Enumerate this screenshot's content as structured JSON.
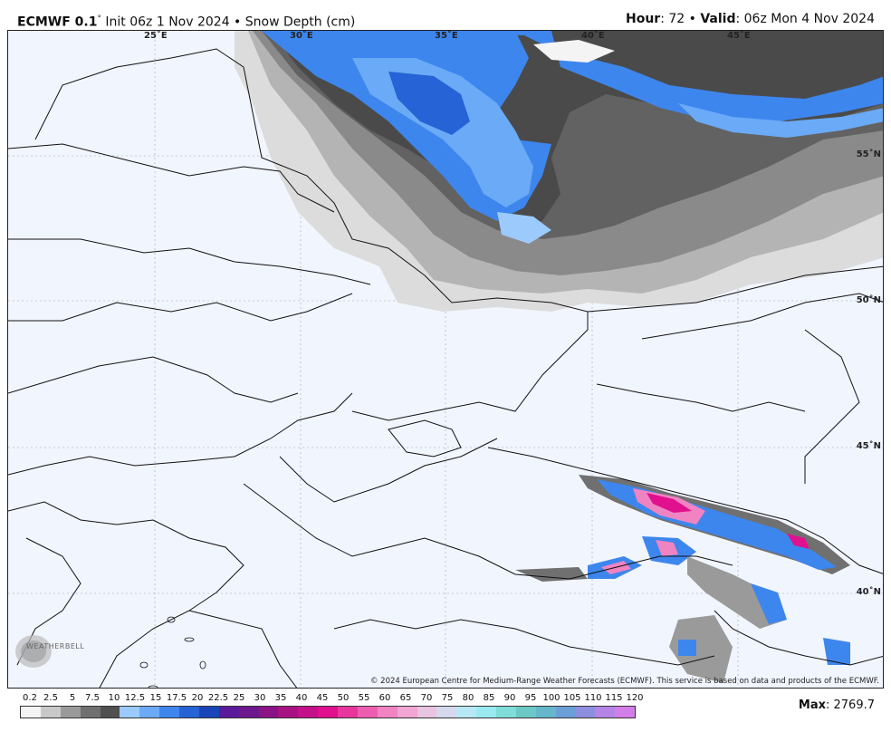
{
  "header": {
    "model": "ECMWF 0.1",
    "degree": "°",
    "init_text": " Init 06z 1 Nov 2024 • Snow Depth (cm)",
    "hour_label": "Hour",
    "hour_value": ": 72 • ",
    "valid_label": "Valid",
    "valid_value": ": 06z Mon 4 Nov 2024"
  },
  "map": {
    "longitude_labels": [
      "25˚E",
      "30˚E",
      "35˚E",
      "40˚E",
      "45˚E"
    ],
    "latitude_labels": [
      "55˚N",
      "50˚N",
      "45˚N",
      "40˚N"
    ],
    "copyright": "© 2024 European Centre for Medium-Range Weather Forecasts (ECMWF). This service is based on data and products of the ECMWF.",
    "logo_text": "WEATHERBELL"
  },
  "legend": {
    "ticks": [
      "0.2",
      "2.5",
      "5",
      "7.5",
      "10",
      "12.5",
      "15",
      "17.5",
      "20",
      "22.5",
      "25",
      "30",
      "35",
      "40",
      "45",
      "50",
      "55",
      "60",
      "65",
      "70",
      "75",
      "80",
      "85",
      "90",
      "95",
      "100",
      "105",
      "110",
      "115",
      "120"
    ],
    "colors": [
      "#f4f4f4",
      "#c8c8c8",
      "#9a9a9a",
      "#707070",
      "#505050",
      "#9ccafc",
      "#6aaaf6",
      "#3d86ee",
      "#2563d6",
      "#1846b8",
      "#5a1a9a",
      "#6e188e",
      "#8a1486",
      "#a81282",
      "#c4108a",
      "#e0108e",
      "#e8369e",
      "#ee5eb0",
      "#f083c2",
      "#f0a5d2",
      "#e8c4e2",
      "#d6d8ee",
      "#b8e8f4",
      "#98eaf0",
      "#80dcd8",
      "#6cc8c4",
      "#66b6cc",
      "#6c9ed8",
      "#8e8ee0",
      "#b484e6",
      "#d27ee8"
    ],
    "max_label": "Max",
    "max_value": ": 2769.7"
  }
}
